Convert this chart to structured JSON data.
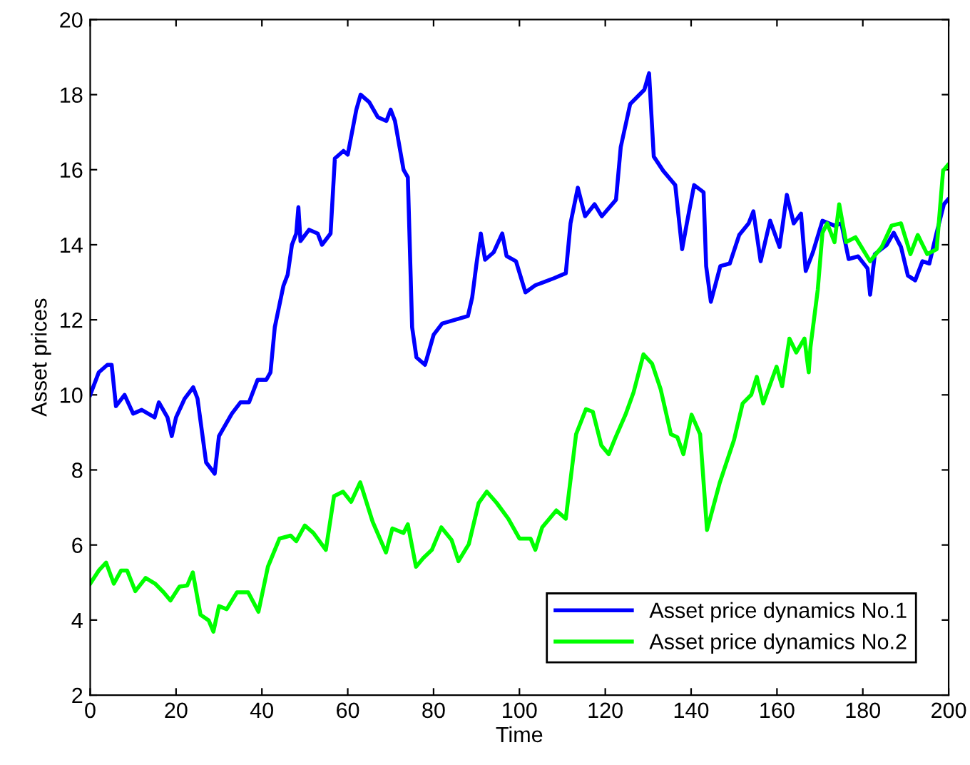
{
  "chart_data": {
    "type": "line",
    "xlabel": "Time",
    "ylabel": "Asset prices",
    "xlim": [
      0,
      200
    ],
    "ylim": [
      2,
      20
    ],
    "xticks": [
      0,
      20,
      40,
      60,
      80,
      100,
      120,
      140,
      160,
      180,
      200
    ],
    "yticks": [
      2,
      4,
      6,
      8,
      10,
      12,
      14,
      16,
      18,
      20
    ],
    "grid": false,
    "legend": "bottom right",
    "series": [
      {
        "name": "Asset price dynamics No.1",
        "color": "#0000ff",
        "x": [
          0,
          2,
          4,
          5,
          6,
          8,
          10,
          12,
          15,
          16,
          18,
          19,
          20,
          22,
          24,
          25,
          27,
          29,
          30,
          33,
          35,
          37,
          39,
          41,
          42,
          43,
          45,
          46,
          47,
          48,
          48.5,
          49,
          51,
          53,
          54,
          56,
          57,
          59,
          60,
          62,
          63,
          65,
          67,
          69,
          70,
          71,
          73,
          74,
          75,
          76,
          78,
          80,
          82,
          85,
          88,
          89,
          90,
          91,
          92,
          94,
          96,
          97,
          99.2,
          101.4,
          103.7,
          108.1,
          110.8,
          111.9,
          113.6,
          115.3,
          117.5,
          119.2,
          122.5,
          123.6,
          125.8,
          129.1,
          130.2,
          131.3,
          133.5,
          136.3,
          137.9,
          139,
          140.7,
          142.9,
          143.5,
          144.6,
          146.8,
          149,
          151.2,
          153.4,
          154.5,
          156.2,
          158.4,
          160.6,
          162.3,
          163.9,
          165.6,
          166.7,
          168.4,
          170.6,
          173.4,
          175,
          176.7,
          178.9,
          181.1,
          181.7,
          182.8,
          185.6,
          187.2,
          188.9,
          190.5,
          192.2,
          193.9,
          195.5,
          197.2,
          198.9,
          199.8
        ],
        "values": [
          10,
          10.6,
          10.8,
          10.8,
          9.7,
          10.0,
          9.5,
          9.6,
          9.4,
          9.8,
          9.4,
          8.9,
          9.4,
          9.9,
          10.2,
          9.9,
          8.2,
          7.9,
          8.9,
          9.5,
          9.8,
          9.8,
          10.4,
          10.4,
          10.6,
          11.8,
          12.9,
          13.2,
          14,
          14.3,
          15,
          14.1,
          14.4,
          14.3,
          14.0,
          14.3,
          16.3,
          16.5,
          16.4,
          17.6,
          18.0,
          17.8,
          17.4,
          17.3,
          17.6,
          17.3,
          16.0,
          15.8,
          11.8,
          11.0,
          10.8,
          11.6,
          11.9,
          12.0,
          12.1,
          12.6,
          13.5,
          14.3,
          13.6,
          13.8,
          14.3,
          13.7,
          13.56,
          12.73,
          12.92,
          13.11,
          13.24,
          14.57,
          15.52,
          14.76,
          15.08,
          14.76,
          15.2,
          16.6,
          17.75,
          18.13,
          18.57,
          16.35,
          15.97,
          15.59,
          13.88,
          14.57,
          15.59,
          15.4,
          13.43,
          12.48,
          13.43,
          13.5,
          14.26,
          14.57,
          14.89,
          13.56,
          14.64,
          13.94,
          15.33,
          14.57,
          14.83,
          13.3,
          13.81,
          14.64,
          14.51,
          14.57,
          13.62,
          13.69,
          13.37,
          12.67,
          13.75,
          14.0,
          14.32,
          13.94,
          13.18,
          13.05,
          13.56,
          13.5,
          14.32,
          15.08,
          15.2
        ]
      },
      {
        "name": "Asset price dynamics No.2",
        "color": "#00ff00",
        "x": [
          0,
          2,
          3.7,
          5.5,
          7.2,
          8.6,
          10.5,
          12.9,
          15.1,
          17.1,
          18.7,
          20.8,
          22.6,
          23.9,
          25.7,
          27.6,
          28.7,
          30,
          31.8,
          34.2,
          36.8,
          39.2,
          41.4,
          44.1,
          46.7,
          48,
          50,
          52,
          54.9,
          56.8,
          58.9,
          60.8,
          62.9,
          65.8,
          68.9,
          70.4,
          73,
          74,
          75.9,
          77.6,
          79.6,
          81.8,
          84.2,
          85.8,
          88.2,
          90.5,
          92.4,
          94.7,
          97.4,
          100,
          102.6,
          103.7,
          105.3,
          108.6,
          110.8,
          113.2,
          115.5,
          117.1,
          119.1,
          120.8,
          122.4,
          124.7,
          126.6,
          128.9,
          130.9,
          132.9,
          135.3,
          136.8,
          138.2,
          140.1,
          142.1,
          143.7,
          146.7,
          150,
          152,
          154,
          155.3,
          156.8,
          159.9,
          161.2,
          162.9,
          164.5,
          166.4,
          167.4,
          167.8,
          169.5,
          170.6,
          171.7,
          173.4,
          174.5,
          176.1,
          178.3,
          181.7,
          184.4,
          186.7,
          188.9,
          191.1,
          192.8,
          195,
          197.2,
          198.7,
          199.8
        ],
        "values": [
          4.97,
          5.32,
          5.53,
          4.97,
          5.32,
          5.32,
          4.77,
          5.12,
          4.97,
          4.74,
          4.52,
          4.89,
          4.92,
          5.27,
          4.14,
          3.99,
          3.69,
          4.37,
          4.29,
          4.74,
          4.74,
          4.22,
          5.42,
          6.17,
          6.25,
          6.1,
          6.52,
          6.32,
          5.87,
          7.3,
          7.42,
          7.15,
          7.67,
          6.62,
          5.8,
          6.44,
          6.32,
          6.55,
          5.42,
          5.65,
          5.87,
          6.47,
          6.13,
          5.57,
          6.02,
          7.12,
          7.42,
          7.12,
          6.7,
          6.17,
          6.17,
          5.87,
          6.47,
          6.92,
          6.7,
          8.95,
          9.62,
          9.55,
          8.65,
          8.42,
          8.87,
          9.47,
          10.07,
          11.08,
          10.83,
          10.15,
          8.95,
          8.87,
          8.42,
          9.47,
          8.95,
          6.4,
          7.67,
          8.8,
          9.77,
          10.0,
          10.48,
          9.77,
          10.75,
          10.23,
          11.5,
          11.13,
          11.5,
          10.6,
          11.27,
          12.8,
          14.32,
          14.57,
          14.07,
          15.08,
          14.07,
          14.2,
          13.56,
          13.94,
          14.51,
          14.57,
          13.75,
          14.26,
          13.75,
          13.88,
          15.97,
          16.12
        ]
      }
    ]
  }
}
